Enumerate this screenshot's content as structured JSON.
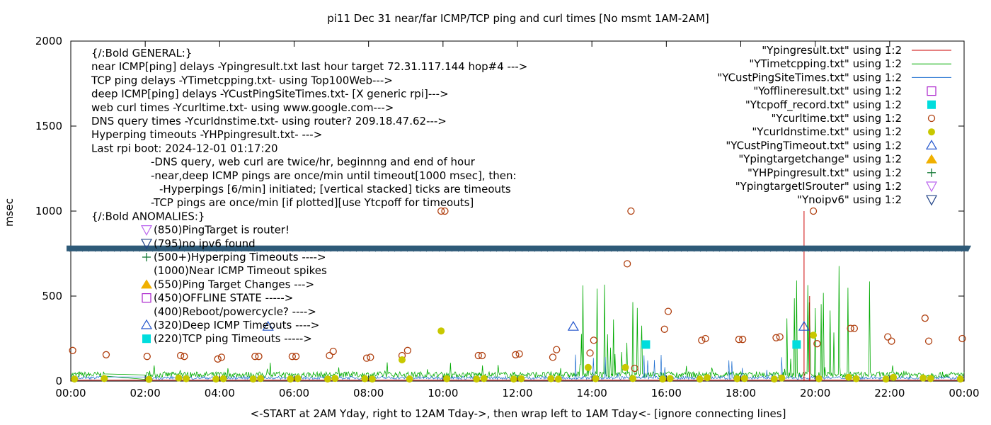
{
  "chart_data": {
    "type": "line",
    "title": "pi11 Dec 31  near/far ICMP/TCP ping and curl times [No msmt 1AM-2AM]",
    "xlabel": "<-START at 2AM Yday, right to 12AM Tday->, then wrap left to 1AM Tday<- [ignore connecting lines]",
    "ylabel": "msec",
    "xlim": [
      0,
      24
    ],
    "ylim": [
      0,
      2000
    ],
    "x_ticks": [
      {
        "v": 0,
        "label": "00:00"
      },
      {
        "v": 2,
        "label": "02:00"
      },
      {
        "v": 4,
        "label": "04:00"
      },
      {
        "v": 6,
        "label": "06:00"
      },
      {
        "v": 8,
        "label": "08:00"
      },
      {
        "v": 10,
        "label": "10:00"
      },
      {
        "v": 12,
        "label": "12:00"
      },
      {
        "v": 14,
        "label": "14:00"
      },
      {
        "v": 16,
        "label": "16:00"
      },
      {
        "v": 18,
        "label": "18:00"
      },
      {
        "v": 20,
        "label": "20:00"
      },
      {
        "v": 22,
        "label": "22:00"
      },
      {
        "v": 24,
        "label": "00:00"
      }
    ],
    "y_ticks": [
      {
        "v": 0,
        "label": "0"
      },
      {
        "v": 500,
        "label": "500"
      },
      {
        "v": 1000,
        "label": "1000"
      },
      {
        "v": 1500,
        "label": "1500"
      },
      {
        "v": 2000,
        "label": "2000"
      }
    ],
    "legend_position": "top-right",
    "legend": [
      {
        "label": "\"Ypingresult.txt\" using 1:2",
        "style": "line",
        "color": "#cc0000"
      },
      {
        "label": "\"YTimetcpping.txt\" using 1:2",
        "style": "line",
        "color": "#00aa00"
      },
      {
        "label": "\"YCustPingSiteTimes.txt\" using 1:2",
        "style": "line",
        "color": "#1f6fd0"
      },
      {
        "label": "\"Yofflineresult.txt\" using 1:2",
        "style": "open-square",
        "color": "#aa22cc"
      },
      {
        "label": "\"Ytcpoff_record.txt\" using 1:2",
        "style": "filled-square",
        "color": "#00dddd"
      },
      {
        "label": "\"Ycurltime.txt\" using 1:2",
        "style": "open-circle",
        "color": "#b04010"
      },
      {
        "label": "\"YcurIdnstime.txt\" using 1:2",
        "style": "filled-circle",
        "color": "#c8c800"
      },
      {
        "label": "\"YCustPingTimeout.txt\" using 1:2",
        "style": "open-triangle-up",
        "color": "#2255cc"
      },
      {
        "label": "\"Ypingtargetchange\" using 1:2",
        "style": "filled-triangle-up",
        "color": "#f0b000"
      },
      {
        "label": "\"YHPpingresult.txt\" using 1:2",
        "style": "plus",
        "color": "#117733"
      },
      {
        "label": "\"YpingtargetISrouter\" using 1:2",
        "style": "open-triangle-down",
        "color": "#bb66ee"
      },
      {
        "label": "\"Ynoipv6\" using 1:2",
        "style": "open-triangle-down",
        "color": "#224488"
      }
    ],
    "notes": [
      "{/:Bold GENERAL:}",
      "near ICMP[ping] delays -Ypingresult.txt last hour target 72.31.117.144 hop#4 --->",
      "TCP ping delays -YTimetcpping.txt- using Top100Web--->",
      "deep ICMP[ping] delays -YCustPingSiteTimes.txt- [X generic rpi]--->",
      "web curl times -Ycurltime.txt- using www.google.com--->",
      "DNS query times -YcurIdnstime.txt- using router? 209.18.47.62--->",
      "Hyperping timeouts -YHPpingresult.txt- --->",
      "Last rpi boot: 2024-12-01 01:17:20"
    ],
    "notes_indented": [
      "-DNS query, web curl are twice/hr, beginnng and end of hour",
      "-near,deep ICMP pings are once/min until timeout[1000 msec], then:",
      "-Hyperpings [6/min] initiated; [vertical stacked] ticks are timeouts",
      "-TCP pings are once/min [if plotted][use Ytcpoff for timeouts]"
    ],
    "anomalies_title": "{/:Bold ANOMALIES:}",
    "anomalies": [
      {
        "label": "(850)PingTarget is router!",
        "marker": "open-triangle-down",
        "color": "#bb66ee"
      },
      {
        "label": "(795)no ipv6 found",
        "marker": "open-triangle-down",
        "color": "#224488"
      },
      {
        "label": "(500+)Hyperping Timeouts ---->",
        "marker": "plus",
        "color": "#117733"
      },
      {
        "label": "(1000)Near ICMP Timeout spikes",
        "marker": "none",
        "color": "#000000"
      },
      {
        "label": "(550)Ping Target Changes --->",
        "marker": "filled-triangle-up",
        "color": "#f0b000"
      },
      {
        "label": "(450)OFFLINE STATE ----->",
        "marker": "open-square",
        "color": "#aa22cc"
      },
      {
        "label": "(400)Reboot/powercycle? ---->",
        "marker": "none",
        "color": "#000000"
      },
      {
        "label": "(320)Deep ICMP Timeouts ---->",
        "marker": "open-triangle-up",
        "color": "#2255cc"
      },
      {
        "label": "(220)TCP ping Timeouts ----->",
        "marker": "filled-square",
        "color": "#00dddd"
      }
    ],
    "noipv6_band": {
      "y": 780,
      "color": "#2e5a78"
    },
    "series": [
      {
        "name": "\"Ycurltime.txt\" using 1:2",
        "marker": "open-circle",
        "color": "#b04010",
        "points": [
          [
            0.05,
            180
          ],
          [
            0.95,
            155
          ],
          [
            2.05,
            145
          ],
          [
            2.95,
            150
          ],
          [
            3.05,
            145
          ],
          [
            3.95,
            130
          ],
          [
            4.05,
            140
          ],
          [
            4.95,
            145
          ],
          [
            5.05,
            145
          ],
          [
            5.95,
            145
          ],
          [
            6.05,
            145
          ],
          [
            6.95,
            150
          ],
          [
            7.05,
            175
          ],
          [
            7.95,
            135
          ],
          [
            8.05,
            140
          ],
          [
            8.9,
            150
          ],
          [
            9.05,
            180
          ],
          [
            9.95,
            1000
          ],
          [
            10.05,
            1000
          ],
          [
            10.95,
            150
          ],
          [
            11.05,
            150
          ],
          [
            11.95,
            155
          ],
          [
            12.05,
            160
          ],
          [
            12.95,
            140
          ],
          [
            13.05,
            185
          ],
          [
            13.95,
            165
          ],
          [
            14.05,
            240
          ],
          [
            14.95,
            690
          ],
          [
            15.05,
            1000
          ],
          [
            15.15,
            75
          ],
          [
            15.95,
            305
          ],
          [
            16.05,
            410
          ],
          [
            16.95,
            240
          ],
          [
            17.05,
            250
          ],
          [
            17.95,
            245
          ],
          [
            18.05,
            245
          ],
          [
            18.95,
            255
          ],
          [
            19.05,
            260
          ],
          [
            19.95,
            1000
          ],
          [
            20.05,
            220
          ],
          [
            20.95,
            310
          ],
          [
            21.05,
            310
          ],
          [
            21.95,
            260
          ],
          [
            22.05,
            235
          ],
          [
            22.95,
            370
          ],
          [
            23.05,
            235
          ],
          [
            23.95,
            250
          ]
        ]
      },
      {
        "name": "\"YcurIdnstime.txt\" using 1:2",
        "marker": "filled-circle",
        "color": "#c8c800",
        "points": [
          [
            0.1,
            12
          ],
          [
            0.9,
            15
          ],
          [
            2.1,
            10
          ],
          [
            2.9,
            18
          ],
          [
            3.1,
            14
          ],
          [
            3.9,
            12
          ],
          [
            4.1,
            14
          ],
          [
            4.9,
            12
          ],
          [
            5.1,
            15
          ],
          [
            5.9,
            12
          ],
          [
            6.1,
            15
          ],
          [
            6.9,
            12
          ],
          [
            7.1,
            16
          ],
          [
            7.9,
            14
          ],
          [
            8.1,
            12
          ],
          [
            8.9,
            125
          ],
          [
            9.1,
            12
          ],
          [
            9.95,
            295
          ],
          [
            10.1,
            14
          ],
          [
            10.9,
            12
          ],
          [
            11.1,
            15
          ],
          [
            11.9,
            12
          ],
          [
            12.1,
            14
          ],
          [
            12.9,
            14
          ],
          [
            13.1,
            12
          ],
          [
            13.9,
            80
          ],
          [
            14.1,
            14
          ],
          [
            14.9,
            80
          ],
          [
            15.1,
            15
          ],
          [
            15.9,
            12
          ],
          [
            16.1,
            15
          ],
          [
            16.9,
            12
          ],
          [
            17.1,
            20
          ],
          [
            17.9,
            14
          ],
          [
            18.1,
            15
          ],
          [
            18.9,
            12
          ],
          [
            19.1,
            18
          ],
          [
            19.95,
            270
          ],
          [
            20.1,
            14
          ],
          [
            20.9,
            22
          ],
          [
            21.1,
            14
          ],
          [
            21.9,
            12
          ],
          [
            22.1,
            22
          ],
          [
            22.9,
            18
          ],
          [
            23.1,
            15
          ],
          [
            23.9,
            12
          ]
        ]
      },
      {
        "name": "\"YCustPingTimeout.txt\" using 1:2",
        "marker": "open-triangle-up",
        "color": "#2255cc",
        "points": [
          [
            5.3,
            320
          ],
          [
            13.5,
            320
          ],
          [
            19.7,
            320
          ]
        ]
      },
      {
        "name": "\"Ytcpoff_record.txt\" using 1:2",
        "marker": "filled-square",
        "color": "#00dddd",
        "points": [
          [
            15.45,
            215
          ],
          [
            19.5,
            215
          ]
        ]
      }
    ],
    "near_icmp_spikes": [
      [
        19.7,
        1000
      ],
      [
        19.85,
        500
      ]
    ]
  }
}
